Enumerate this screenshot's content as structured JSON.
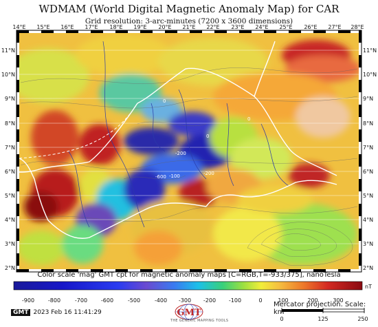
{
  "title": "WDMAM (World Digital Magnetic Anomaly Map) for CAR",
  "subtitle": "Grid resolution: 3-arc-minutes (7200 x 3600 dimensions)",
  "lon_labels": [
    "14°E",
    "15°E",
    "16°E",
    "17°E",
    "18°E",
    "19°E",
    "20°E",
    "21°E",
    "22°E",
    "23°E",
    "24°E",
    "25°E",
    "26°E",
    "27°E",
    "28°E"
  ],
  "lat_labels": [
    "11°N",
    "10°N",
    "9°N",
    "8°N",
    "7°N",
    "6°N",
    "5°N",
    "4°N",
    "3°N",
    "2°N"
  ],
  "contour_labels": [
    "-600",
    "-100",
    "-200",
    "-200",
    "0",
    "0",
    "0"
  ],
  "colorbar": {
    "caption": "Color scale 'mag' GMT cpt for magnetic anomaly maps [C=RGB,T=-933/375], nanoTesla",
    "unit": "nT",
    "ticks": [
      "-900",
      "-800",
      "-700",
      "-600",
      "-500",
      "-400",
      "-300",
      "-200",
      "-100",
      "0",
      "100",
      "200",
      "300"
    ],
    "range": [
      -933,
      375
    ]
  },
  "timestamp": "2023 Feb 16 11:41:29",
  "gmt_badge": "GMT",
  "logo_text": "THE GENERIC MAPPING TOOLS",
  "logo_letters": "GMT",
  "projection": "Mercator projection. Scale: km",
  "scale_ticks": [
    "0",
    "125",
    "250"
  ]
}
